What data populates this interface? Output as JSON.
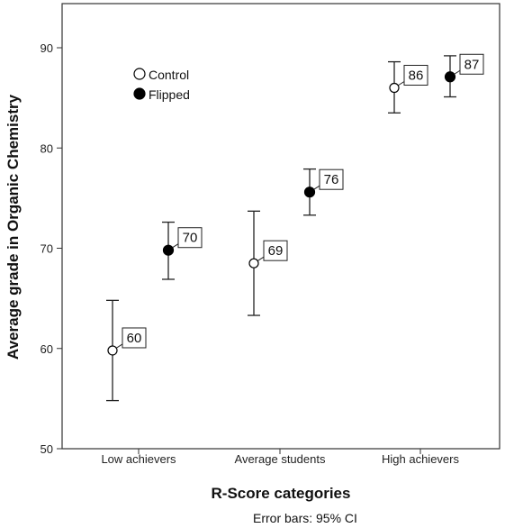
{
  "chart_data": {
    "type": "scatter",
    "xlabel": "R-Score categories",
    "ylabel": "Average grade in Organic Chemistry",
    "categories": [
      "Low achievers",
      "Average students",
      "High achievers"
    ],
    "ylim": [
      50,
      95
    ],
    "yticks": [
      "50",
      "60",
      "70",
      "80",
      "90"
    ],
    "grid": false,
    "legend_position": "top-left",
    "footnote": "Error bars: 95% CI",
    "series": [
      {
        "name": "Control",
        "marker": "open-circle",
        "color": "#000000",
        "values": [
          59.8,
          68.5,
          86.0
        ],
        "ci_low": [
          54.8,
          63.3,
          83.5
        ],
        "ci_high": [
          64.8,
          73.7,
          88.6
        ],
        "labels": [
          "60",
          "69",
          "86"
        ]
      },
      {
        "name": "Flipped",
        "marker": "filled-circle",
        "color": "#000000",
        "values": [
          69.8,
          75.6,
          87.1
        ],
        "ci_low": [
          66.9,
          73.3,
          85.1
        ],
        "ci_high": [
          72.6,
          77.9,
          89.2
        ],
        "labels": [
          "70",
          "76",
          "87"
        ]
      }
    ]
  }
}
